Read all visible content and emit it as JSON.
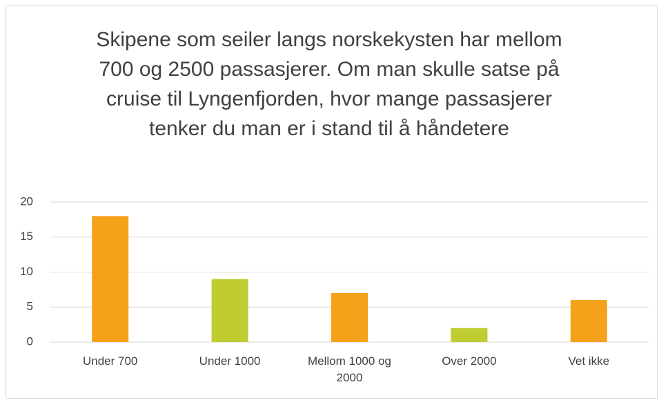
{
  "chart_data": {
    "type": "bar",
    "title": "Skipene som seiler langs norskekysten har mellom 700 og 2500 passasjerer. Om man skulle satse på cruise til Lyngenfjorden, hvor mange passasjerer tenker du man er i stand til å håndetere",
    "categories": [
      "Under 700",
      "Under 1000",
      "Mellom 1000 og 2000",
      "Over 2000",
      "Vet ikke"
    ],
    "values": [
      18,
      9,
      7,
      2,
      6
    ],
    "colors": [
      "#f5a21b",
      "#bfcd32",
      "#f5a21b",
      "#bfcd32",
      "#f5a21b"
    ],
    "ylim": [
      0,
      20
    ],
    "yticks": [
      0,
      5,
      10,
      15,
      20
    ],
    "grid": true
  }
}
